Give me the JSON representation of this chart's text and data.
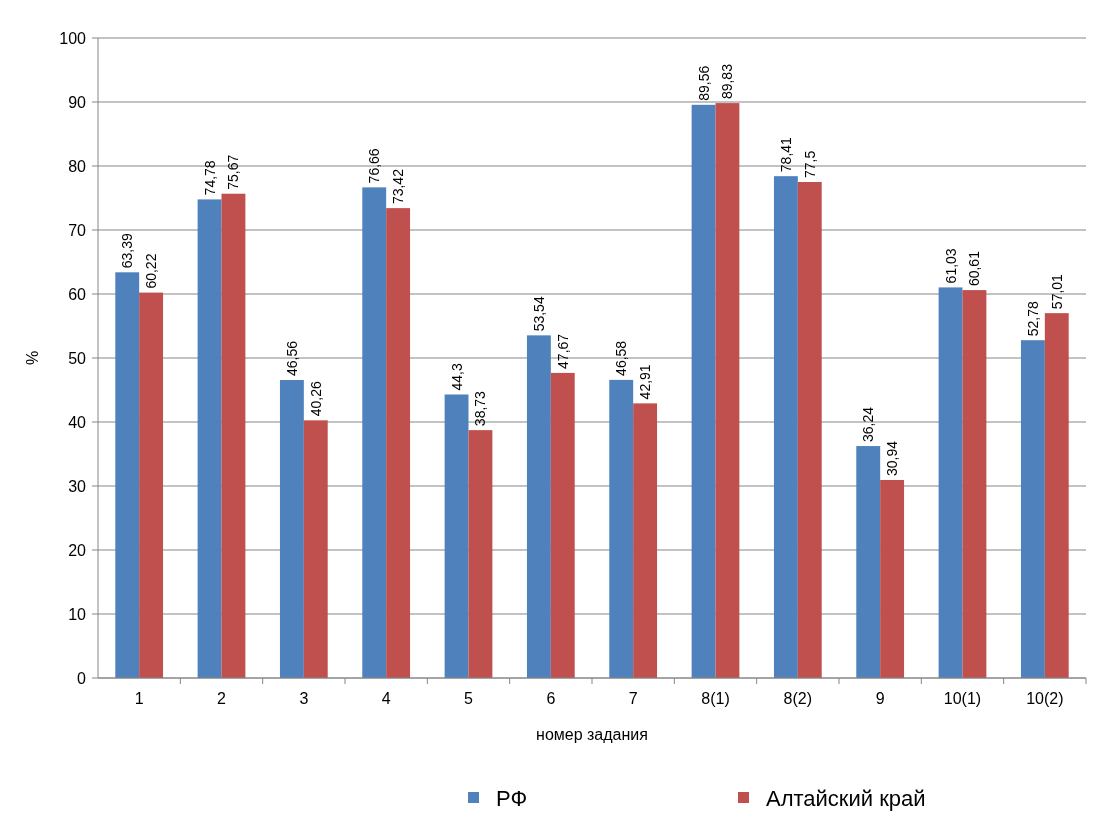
{
  "chart_data": {
    "type": "bar",
    "xlabel": "номер задания",
    "ylabel": "%",
    "categories": [
      "1",
      "2",
      "3",
      "4",
      "5",
      "6",
      "7",
      "8(1)",
      "8(2)",
      "9",
      "10(1)",
      "10(2)"
    ],
    "series": [
      {
        "name": "РФ",
        "color": "#4f81bd",
        "values": [
          63.39,
          74.78,
          46.56,
          76.66,
          44.3,
          53.54,
          46.58,
          89.56,
          78.41,
          36.24,
          61.03,
          52.78
        ],
        "value_labels": [
          "63,39",
          "74,78",
          "46,56",
          "76,66",
          "44,3",
          "53,54",
          "46,58",
          "89,56",
          "78,41",
          "36,24",
          "61,03",
          "52,78"
        ]
      },
      {
        "name": "Алтайский край",
        "color": "#c0504d",
        "values": [
          60.22,
          75.67,
          40.26,
          73.42,
          38.73,
          47.67,
          42.91,
          89.83,
          77.5,
          30.94,
          60.61,
          57.01
        ],
        "value_labels": [
          "60,22",
          "75,67",
          "40,26",
          "73,42",
          "38,73",
          "47,67",
          "42,91",
          "89,83",
          "77,5",
          "30,94",
          "60,61",
          "57,01"
        ]
      }
    ],
    "ylim": [
      0,
      100
    ],
    "yticks": [
      0,
      10,
      20,
      30,
      40,
      50,
      60,
      70,
      80,
      90,
      100
    ],
    "grid": "y",
    "legend": "bottom"
  }
}
